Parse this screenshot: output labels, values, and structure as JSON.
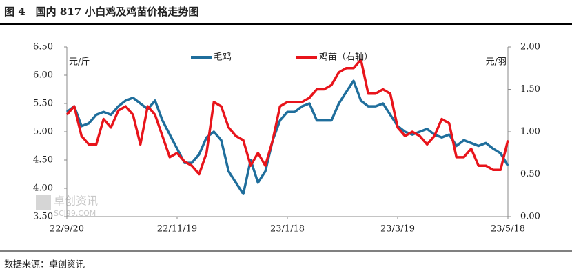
{
  "chart_data": {
    "type": "line",
    "title": "图 4　国内 817 小白鸡及鸡苗价格走势图",
    "source": "数据来源：卓创资讯",
    "watermark": [
      "卓创资讯",
      "SCI99.COM"
    ],
    "y_unit": "元/斤",
    "y2_unit": "元/羽",
    "categories": [
      "22/9/20",
      null,
      null,
      null,
      null,
      null,
      null,
      null,
      null,
      null,
      null,
      null,
      null,
      null,
      null,
      "22/11/19",
      null,
      null,
      null,
      null,
      null,
      null,
      null,
      null,
      null,
      null,
      null,
      null,
      null,
      null,
      "23/1/18",
      null,
      null,
      null,
      null,
      null,
      null,
      null,
      null,
      null,
      null,
      null,
      null,
      null,
      null,
      "23/3/19",
      null,
      null,
      null,
      null,
      null,
      null,
      null,
      null,
      null,
      null,
      null,
      null,
      null,
      null,
      "23/5/18"
    ],
    "series": [
      {
        "name": "毛鸡",
        "color": "#1f6e9c",
        "values": [
          5.35,
          5.45,
          5.1,
          5.15,
          5.3,
          5.35,
          5.3,
          5.45,
          5.55,
          5.6,
          5.5,
          5.4,
          5.55,
          5.2,
          4.95,
          4.7,
          4.45,
          4.45,
          4.6,
          4.9,
          5.0,
          4.85,
          4.3,
          4.1,
          3.9,
          4.5,
          4.1,
          4.3,
          4.85,
          5.2,
          5.35,
          5.35,
          5.45,
          5.5,
          5.2,
          5.2,
          5.2,
          5.5,
          5.7,
          5.9,
          5.55,
          5.45,
          5.45,
          5.5,
          5.3,
          5.1,
          5.0,
          4.95,
          5.0,
          5.05,
          4.95,
          4.9,
          4.95,
          4.75,
          4.85,
          4.8,
          4.75,
          4.8,
          4.7,
          4.62,
          4.4
        ]
      },
      {
        "name": "鸡苗（右轴）",
        "color": "#e8141b",
        "axis": "y2",
        "values": [
          1.2,
          1.3,
          0.95,
          0.85,
          0.85,
          1.15,
          1.05,
          1.25,
          1.3,
          1.2,
          0.85,
          1.3,
          1.2,
          0.95,
          0.7,
          0.75,
          0.65,
          0.6,
          0.5,
          0.75,
          1.35,
          1.3,
          1.05,
          0.95,
          0.9,
          0.6,
          0.75,
          0.6,
          0.9,
          1.3,
          1.35,
          1.35,
          1.35,
          1.4,
          1.5,
          1.5,
          1.55,
          1.7,
          1.75,
          1.75,
          1.85,
          1.45,
          1.45,
          1.5,
          1.45,
          1.05,
          0.95,
          1.0,
          0.95,
          0.85,
          0.95,
          1.15,
          1.1,
          0.7,
          0.7,
          0.8,
          0.6,
          0.6,
          0.55,
          0.55,
          0.9
        ]
      }
    ],
    "ylim": [
      3.5,
      6.5
    ],
    "yticks": [
      {
        "value": 3.5,
        "label": "3.50"
      },
      {
        "value": 4,
        "label": "4.00"
      },
      {
        "value": 4.5,
        "label": "4.50"
      },
      {
        "value": 5,
        "label": "5.00"
      },
      {
        "value": 5.5,
        "label": "5.50"
      },
      {
        "value": 6,
        "label": "6.00"
      },
      {
        "value": 6.5,
        "label": "6.50"
      }
    ],
    "y2lim": [
      0,
      2
    ],
    "y2ticks": [
      {
        "value": 0,
        "label": "0.00"
      },
      {
        "value": 0.5,
        "label": "0.50"
      },
      {
        "value": 1,
        "label": "1.00"
      },
      {
        "value": 1.5,
        "label": "1.50"
      },
      {
        "value": 2,
        "label": "2.00"
      }
    ],
    "grid": false,
    "legend": "top"
  }
}
